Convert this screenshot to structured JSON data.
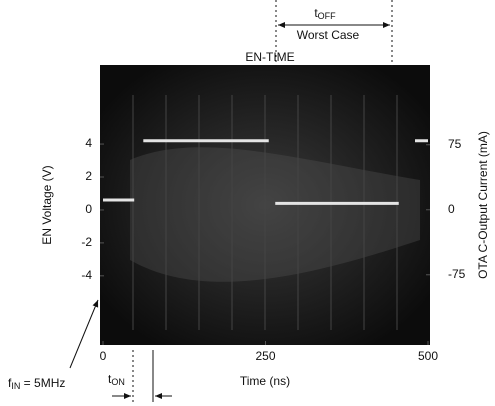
{
  "chart_data": {
    "type": "line",
    "title": "EN-TIME",
    "xlabel": "Time (ns)",
    "ylabel": "EN Voltage (V)",
    "y2label": "OTA C-Output Current (mA)",
    "x": [
      0,
      48,
      55,
      62,
      255,
      260,
      265,
      455,
      470,
      480,
      500
    ],
    "series": [
      {
        "color": "#e4e4e4",
        "values": [
          0.6,
          0.6,
          null,
          4.2,
          4.2,
          null,
          0.4,
          0.4,
          null,
          4.2,
          4.2
        ]
      }
    ],
    "xlim": [
      0,
      500
    ],
    "xticks": [
      0,
      250,
      500
    ],
    "ylim": [
      -8.2,
      8.8
    ],
    "yticks": [
      -4,
      -2,
      0,
      2,
      4
    ],
    "y2lim": [
      -156,
      167
    ],
    "y2ticks": [
      -75,
      0,
      75
    ],
    "annotations": {
      "t_off": {
        "base": "t",
        "sub": "OFF"
      },
      "worst_case": "Worst Case",
      "f_in": {
        "base": "f",
        "sub": "IN",
        "rest": " = 5MHz"
      },
      "t_on": {
        "base": "t",
        "sub": "ON"
      }
    }
  }
}
